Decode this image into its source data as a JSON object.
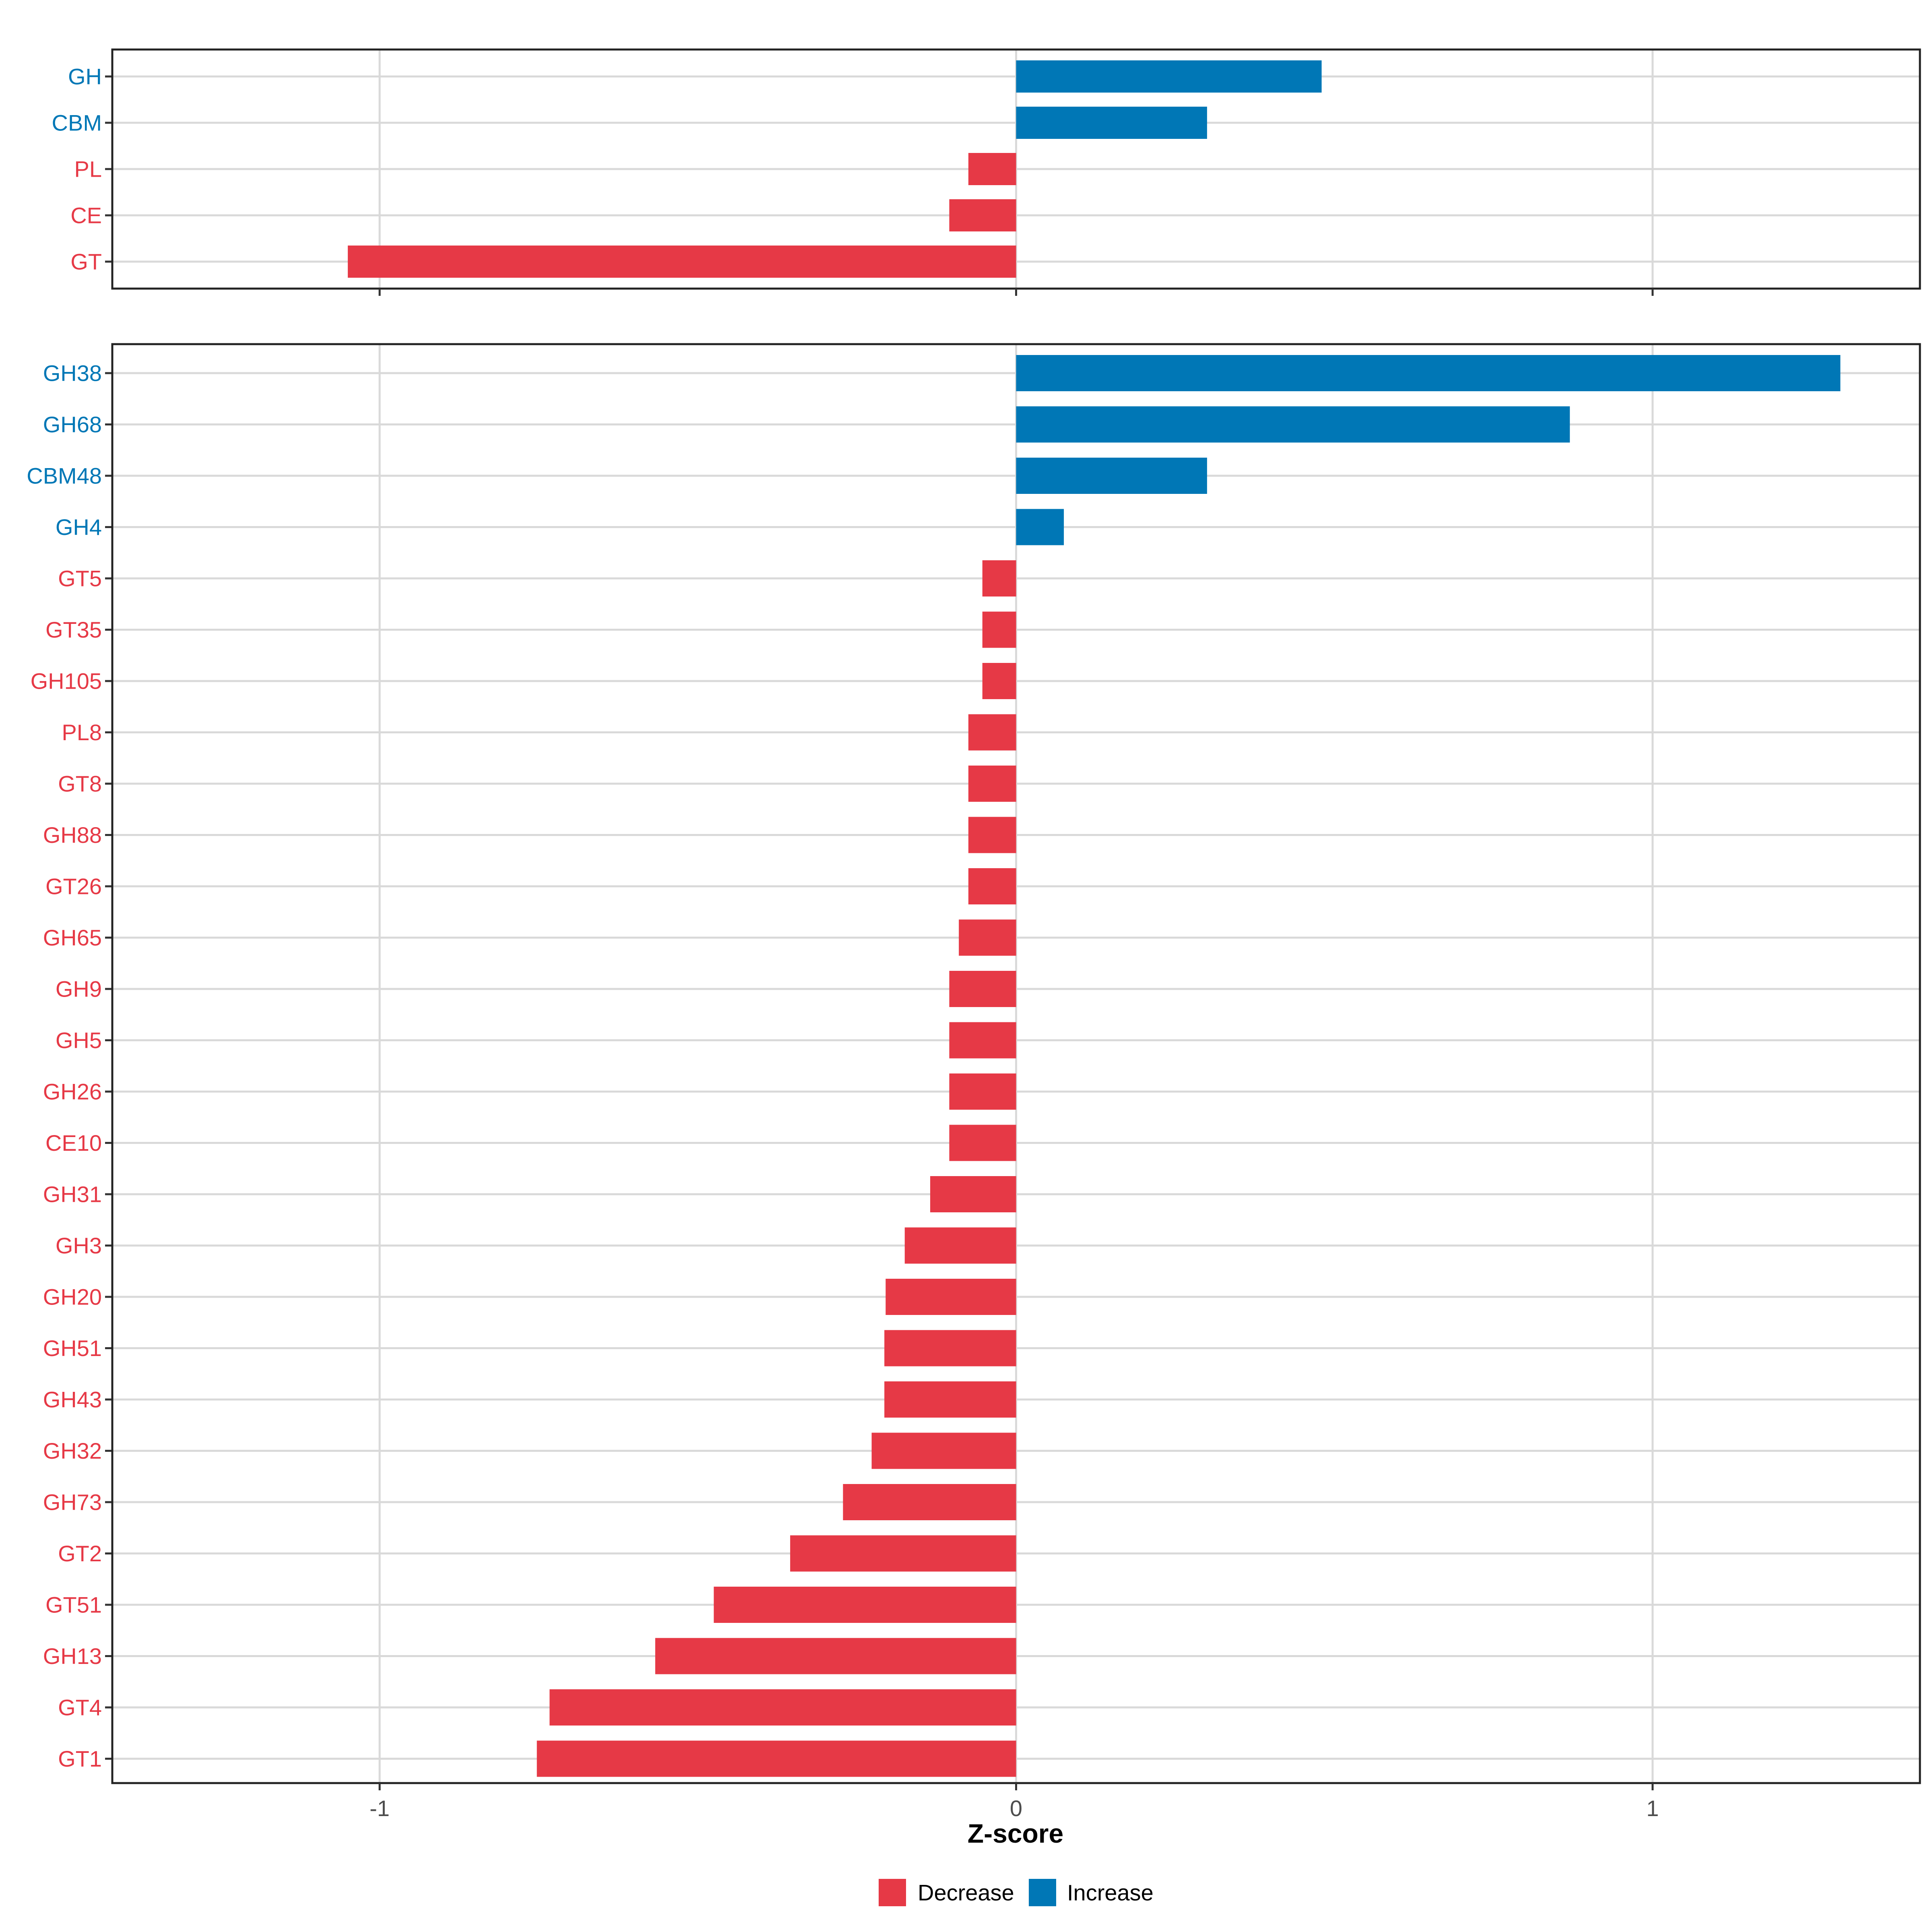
{
  "colors": {
    "decrease": "#E63946",
    "increase": "#0077B6"
  },
  "legend": [
    {
      "label": "Decrease",
      "color": "#E63946"
    },
    {
      "label": "Increase",
      "color": "#0077B6"
    }
  ],
  "chart_data": [
    {
      "type": "bar",
      "orientation": "horizontal",
      "panel": "top",
      "categories": [
        "GH",
        "CBM",
        "PL",
        "CE",
        "GT"
      ],
      "values": [
        0.48,
        0.3,
        -0.075,
        -0.105,
        -1.05
      ],
      "directions": [
        "Increase",
        "Increase",
        "Decrease",
        "Decrease",
        "Decrease"
      ],
      "xlim": [
        -1.42,
        1.42
      ],
      "xticks": [
        -1,
        0,
        1
      ],
      "xtick_labels": [],
      "grid": true
    },
    {
      "type": "bar",
      "orientation": "horizontal",
      "panel": "bottom",
      "categories": [
        "GH38",
        "GH68",
        "CBM48",
        "GH4",
        "GT5",
        "GT35",
        "GH105",
        "PL8",
        "GT8",
        "GH88",
        "GT26",
        "GH65",
        "GH9",
        "GH5",
        "GH26",
        "CE10",
        "GH31",
        "GH3",
        "GH20",
        "GH51",
        "GH43",
        "GH32",
        "GH73",
        "GT2",
        "GT51",
        "GH13",
        "GT4",
        "GT1"
      ],
      "values": [
        1.295,
        0.87,
        0.3,
        0.075,
        -0.053,
        -0.053,
        -0.053,
        -0.075,
        -0.075,
        -0.075,
        -0.075,
        -0.09,
        -0.105,
        -0.105,
        -0.105,
        -0.105,
        -0.135,
        -0.175,
        -0.205,
        -0.207,
        -0.207,
        -0.227,
        -0.272,
        -0.355,
        -0.475,
        -0.567,
        -0.733,
        -0.753
      ],
      "directions": [
        "Increase",
        "Increase",
        "Increase",
        "Increase",
        "Decrease",
        "Decrease",
        "Decrease",
        "Decrease",
        "Decrease",
        "Decrease",
        "Decrease",
        "Decrease",
        "Decrease",
        "Decrease",
        "Decrease",
        "Decrease",
        "Decrease",
        "Decrease",
        "Decrease",
        "Decrease",
        "Decrease",
        "Decrease",
        "Decrease",
        "Decrease",
        "Decrease",
        "Decrease",
        "Decrease",
        "Decrease"
      ],
      "xlim": [
        -1.42,
        1.42
      ],
      "xticks": [
        -1,
        0,
        1
      ],
      "xtick_labels": [
        "-1",
        "0",
        "1"
      ],
      "xlabel": "Z-score",
      "grid": true
    }
  ]
}
